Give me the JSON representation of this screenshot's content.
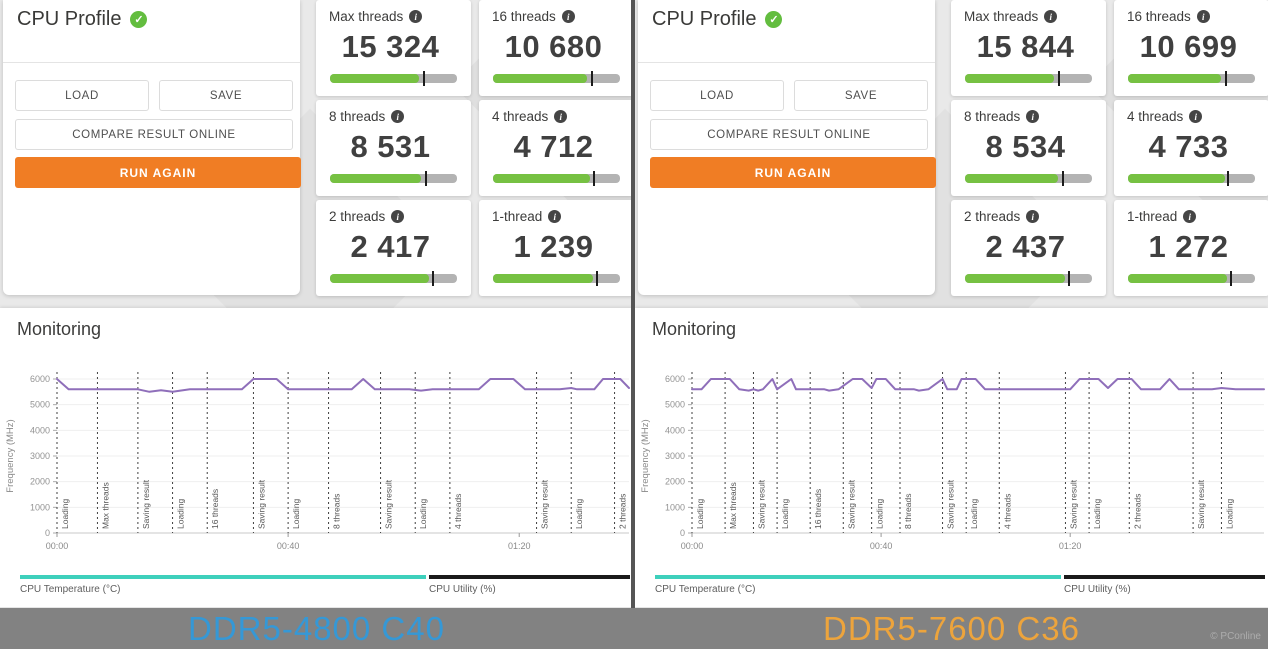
{
  "icons": {
    "info": "i",
    "check": "✓",
    "copyright": "©"
  },
  "watermark": "PConline",
  "panels": [
    {
      "header": {
        "title": "CPU Profile"
      },
      "buttons": {
        "load": "LOAD",
        "save": "SAVE",
        "compare": "COMPARE RESULT ONLINE",
        "run_again": "RUN AGAIN"
      },
      "cards": [
        {
          "label": "Max threads",
          "value": "15 324",
          "bar_fill": 70,
          "bar_marker": 73
        },
        {
          "label": "16 threads",
          "value": "10 680",
          "bar_fill": 74,
          "bar_marker": 77
        },
        {
          "label": "8 threads",
          "value": "8 531",
          "bar_fill": 72,
          "bar_marker": 75
        },
        {
          "label": "4 threads",
          "value": "4 712",
          "bar_fill": 76,
          "bar_marker": 79
        },
        {
          "label": "2 threads",
          "value": "2 417",
          "bar_fill": 78,
          "bar_marker": 80
        },
        {
          "label": "1-thread",
          "value": "1 239",
          "bar_fill": 79,
          "bar_marker": 81
        }
      ],
      "monitoring": {
        "title": "Monitoring",
        "legend": [
          {
            "label": "CPU Temperature (°C)",
            "color": "#3ed0bc"
          },
          {
            "label": "CPU Utility (%)",
            "color": "#1a1a1a"
          }
        ]
      },
      "caption": {
        "text": "DDR5-4800 C40",
        "color": "#3598d6"
      }
    },
    {
      "header": {
        "title": "CPU Profile"
      },
      "buttons": {
        "load": "LOAD",
        "save": "SAVE",
        "compare": "COMPARE RESULT ONLINE",
        "run_again": "RUN AGAIN"
      },
      "cards": [
        {
          "label": "Max threads",
          "value": "15 844",
          "bar_fill": 70,
          "bar_marker": 73
        },
        {
          "label": "16 threads",
          "value": "10 699",
          "bar_fill": 73,
          "bar_marker": 76
        },
        {
          "label": "8 threads",
          "value": "8 534",
          "bar_fill": 73,
          "bar_marker": 76
        },
        {
          "label": "4 threads",
          "value": "4 733",
          "bar_fill": 76,
          "bar_marker": 78
        },
        {
          "label": "2 threads",
          "value": "2 437",
          "bar_fill": 79,
          "bar_marker": 81
        },
        {
          "label": "1-thread",
          "value": "1 272",
          "bar_fill": 78,
          "bar_marker": 80
        }
      ],
      "monitoring": {
        "title": "Monitoring",
        "legend": [
          {
            "label": "CPU Temperature (°C)",
            "color": "#3ed0bc"
          },
          {
            "label": "CPU Utility (%)",
            "color": "#1a1a1a"
          }
        ]
      },
      "caption": {
        "text": "DDR5-7600 C36",
        "color": "#eda43c"
      }
    }
  ],
  "chart_data": [
    {
      "type": "line",
      "title": "Monitoring (DDR5-4800 C40)",
      "ylabel": "Frequency (MHz)",
      "ylim": [
        0,
        6400
      ],
      "yticks": [
        0,
        1000,
        2000,
        3000,
        4000,
        5000,
        6000
      ],
      "xlim_seconds": [
        0,
        99
      ],
      "xticks": [
        {
          "t": 0,
          "label": "00:00"
        },
        {
          "t": 40,
          "label": "00:40"
        },
        {
          "t": 80,
          "label": "01:20"
        }
      ],
      "markers": [
        {
          "t": 0,
          "label": "Loading"
        },
        {
          "t": 7,
          "label": "Max threads"
        },
        {
          "t": 14,
          "label": "Saving result"
        },
        {
          "t": 20,
          "label": "Loading"
        },
        {
          "t": 26,
          "label": "16 threads"
        },
        {
          "t": 34,
          "label": "Saving result"
        },
        {
          "t": 40,
          "label": "Loading"
        },
        {
          "t": 47,
          "label": "8 threads"
        },
        {
          "t": 56,
          "label": "Saving result"
        },
        {
          "t": 62,
          "label": "Loading"
        },
        {
          "t": 68,
          "label": "4 threads"
        },
        {
          "t": 83,
          "label": "Saving result"
        },
        {
          "t": 89,
          "label": "Loading"
        },
        {
          "t": 96.5,
          "label": "2 threads"
        }
      ],
      "series": [
        {
          "name": "Frequency (MHz)",
          "color": "#8f6fba",
          "points": [
            [
              0,
              6000
            ],
            [
              2,
              5600
            ],
            [
              14,
              5600
            ],
            [
              16,
              5500
            ],
            [
              18,
              5560
            ],
            [
              20,
              5500
            ],
            [
              23,
              5600
            ],
            [
              32,
              5600
            ],
            [
              34,
              6000
            ],
            [
              38,
              6000
            ],
            [
              40,
              5600
            ],
            [
              51,
              5600
            ],
            [
              53,
              6000
            ],
            [
              55,
              5600
            ],
            [
              61,
              5600
            ],
            [
              63,
              5550
            ],
            [
              65,
              5600
            ],
            [
              73,
              5600
            ],
            [
              75,
              6000
            ],
            [
              79,
              6000
            ],
            [
              81,
              5600
            ],
            [
              87,
              5600
            ],
            [
              89,
              5650
            ],
            [
              90,
              5600
            ],
            [
              93,
              5600
            ],
            [
              94.5,
              6000
            ],
            [
              97.5,
              6000
            ],
            [
              99,
              5650
            ]
          ]
        }
      ]
    },
    {
      "type": "line",
      "title": "Monitoring (DDR5-7600 C36)",
      "ylabel": "Frequency (MHz)",
      "ylim": [
        0,
        6400
      ],
      "yticks": [
        0,
        1000,
        2000,
        3000,
        4000,
        5000,
        6000
      ],
      "xlim_seconds": [
        0,
        121
      ],
      "xticks": [
        {
          "t": 0,
          "label": "00:00"
        },
        {
          "t": 40,
          "label": "00:40"
        },
        {
          "t": 80,
          "label": "01:20"
        }
      ],
      "markers": [
        {
          "t": 0,
          "label": "Loading"
        },
        {
          "t": 7,
          "label": "Max threads"
        },
        {
          "t": 13,
          "label": "Saving result"
        },
        {
          "t": 18,
          "label": "Loading"
        },
        {
          "t": 25,
          "label": "16 threads"
        },
        {
          "t": 32,
          "label": "Saving result"
        },
        {
          "t": 38,
          "label": "Loading"
        },
        {
          "t": 44,
          "label": "8 threads"
        },
        {
          "t": 53,
          "label": "Saving result"
        },
        {
          "t": 58,
          "label": "Loading"
        },
        {
          "t": 65,
          "label": "4 threads"
        },
        {
          "t": 79,
          "label": "Saving result"
        },
        {
          "t": 84,
          "label": "Loading"
        },
        {
          "t": 92.5,
          "label": "2 threads"
        },
        {
          "t": 106,
          "label": "Saving result"
        },
        {
          "t": 112,
          "label": "Loading"
        }
      ],
      "series": [
        {
          "name": "Frequency (MHz)",
          "color": "#8f6fba",
          "points": [
            [
              0,
              5600
            ],
            [
              2,
              5600
            ],
            [
              4,
              6000
            ],
            [
              8,
              6000
            ],
            [
              10,
              5600
            ],
            [
              12,
              5550
            ],
            [
              13,
              5600
            ],
            [
              14,
              5550
            ],
            [
              15,
              5600
            ],
            [
              17,
              6000
            ],
            [
              18,
              5600
            ],
            [
              21,
              6000
            ],
            [
              22,
              5600
            ],
            [
              28,
              5600
            ],
            [
              29,
              5550
            ],
            [
              31,
              5600
            ],
            [
              34,
              6000
            ],
            [
              36,
              6000
            ],
            [
              38,
              5650
            ],
            [
              39,
              6000
            ],
            [
              41,
              6000
            ],
            [
              43,
              5600
            ],
            [
              47,
              5600
            ],
            [
              48,
              5550
            ],
            [
              50,
              5600
            ],
            [
              53,
              6000
            ],
            [
              54,
              5600
            ],
            [
              56,
              5600
            ],
            [
              57,
              6000
            ],
            [
              60,
              6000
            ],
            [
              62,
              5600
            ],
            [
              78,
              5600
            ],
            [
              80,
              5600
            ],
            [
              82,
              6000
            ],
            [
              86,
              6000
            ],
            [
              88,
              5650
            ],
            [
              90,
              6000
            ],
            [
              93,
              6000
            ],
            [
              95,
              5600
            ],
            [
              99,
              5600
            ],
            [
              101,
              6000
            ],
            [
              103,
              5600
            ],
            [
              110,
              5600
            ],
            [
              112,
              5650
            ],
            [
              115,
              5600
            ],
            [
              121,
              5600
            ]
          ]
        }
      ]
    }
  ]
}
